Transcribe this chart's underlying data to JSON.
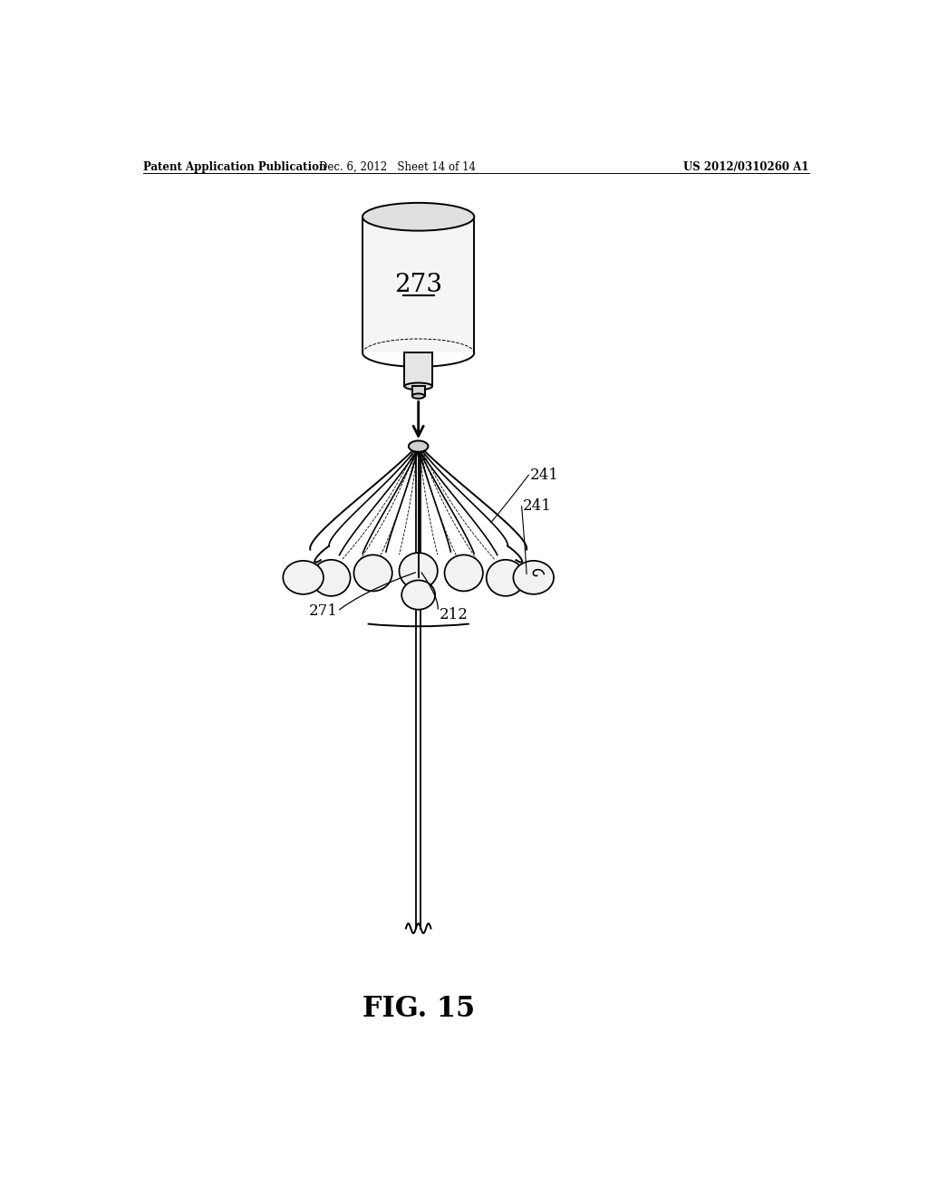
{
  "background_color": "#ffffff",
  "header_left": "Patent Application Publication",
  "header_mid": "Dec. 6, 2012   Sheet 14 of 14",
  "header_right": "US 2012/0310260 A1",
  "figure_label": "FIG. 15",
  "label_273": "273",
  "label_241a": "241",
  "label_241b": "241",
  "label_271": "271",
  "label_212": "212",
  "line_color": "#000000",
  "lw": 1.4
}
